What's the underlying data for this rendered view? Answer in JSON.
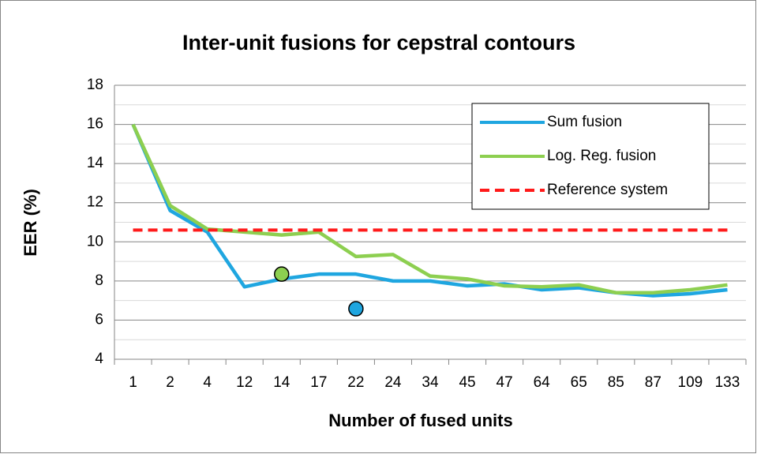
{
  "chart_data": {
    "type": "line",
    "title": "Inter-unit fusions for cepstral contours",
    "x_label": "Number of fused units",
    "y_label": "EER (%)",
    "categories": [
      "1",
      "2",
      "4",
      "12",
      "14",
      "17",
      "22",
      "24",
      "34",
      "45",
      "47",
      "64",
      "65",
      "85",
      "87",
      "109",
      "133"
    ],
    "series": [
      {
        "name": "Sum fusion",
        "color": "#1fa6e0",
        "dash": false,
        "values": [
          16,
          11.6,
          10.5,
          7.7,
          8.1,
          8.35,
          8.35,
          8.0,
          8.0,
          7.75,
          7.85,
          7.55,
          7.65,
          7.4,
          7.25,
          7.35,
          7.55
        ]
      },
      {
        "name": "Log. Reg. fusion",
        "color": "#8dcf50",
        "dash": false,
        "values": [
          16,
          11.85,
          10.65,
          10.5,
          10.35,
          10.5,
          9.25,
          9.35,
          8.25,
          8.1,
          7.75,
          7.7,
          7.8,
          7.4,
          7.4,
          7.55,
          7.8
        ]
      },
      {
        "name": "Reference system",
        "color": "#ff1a1a",
        "dash": true,
        "values": [
          10.6,
          10.6,
          10.6,
          10.6,
          10.6,
          10.6,
          10.6,
          10.6,
          10.6,
          10.6,
          10.6,
          10.6,
          10.6,
          10.6,
          10.6,
          10.6,
          10.6
        ]
      }
    ],
    "points": [
      {
        "category": "14",
        "y": 8.35,
        "color": "#8dcf50"
      },
      {
        "category": "22",
        "y": 6.58,
        "color": "#1fa6e0"
      }
    ],
    "ylim": [
      4,
      18
    ],
    "yticks": [
      4,
      6,
      8,
      10,
      12,
      14,
      16,
      18
    ],
    "minor_yticks": [
      5,
      7,
      9,
      11,
      13,
      15,
      17
    ],
    "grid": true,
    "legend": "upper right"
  }
}
